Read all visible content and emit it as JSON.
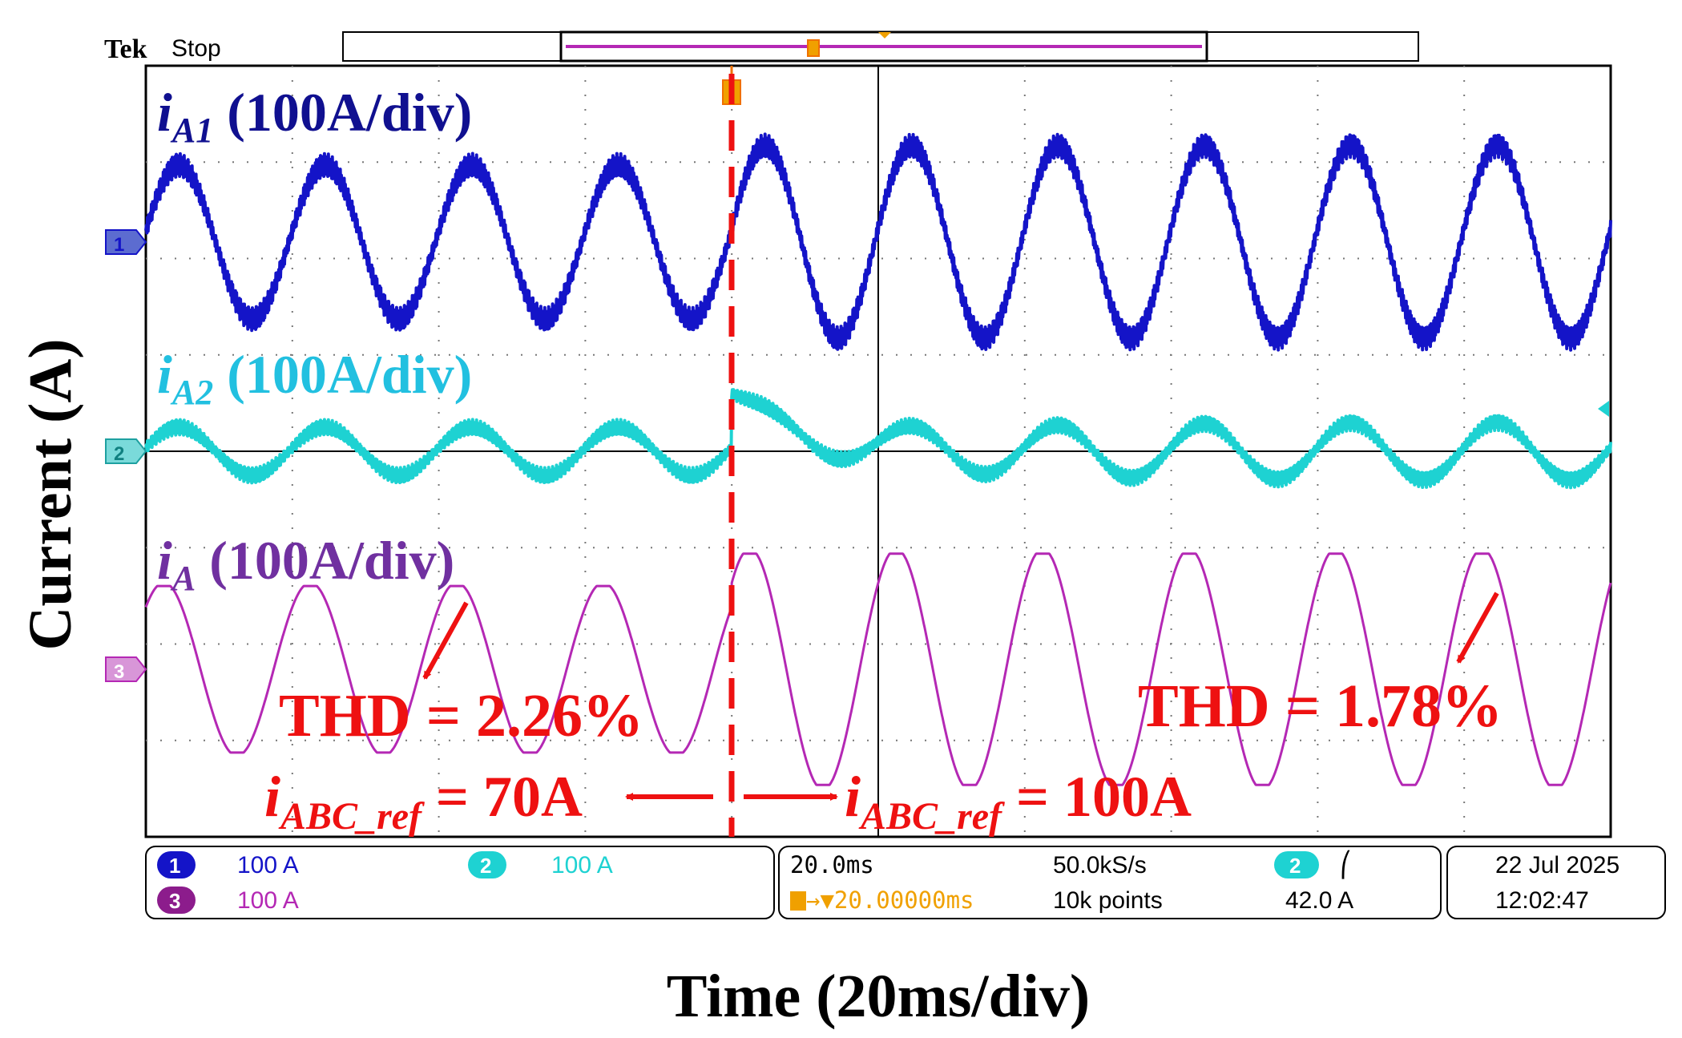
{
  "header": {
    "brand": "Tek",
    "state": "Stop"
  },
  "axes": {
    "ylabel": "Current (A)",
    "xlabel": "Time (20ms/div)"
  },
  "chart_data": {
    "type": "line",
    "title": "",
    "xlabel": "Time (20ms/div)",
    "ylabel": "Current (A)",
    "x_unit": "ms",
    "xlim": [
      0,
      200
    ],
    "divisions": {
      "horizontal": 10,
      "vertical": 8
    },
    "grid": true,
    "step_time_ms": 80,
    "fundamental_hz": 50,
    "series": [
      {
        "name": "iA1",
        "sub": "A1",
        "label_rest": " (100A/div)",
        "scale": "100 A/div",
        "channel": "1",
        "color": "#1414c8",
        "amp_before_A": 80,
        "amp_after_A": 100,
        "ripple_A": 12,
        "offset_div": 0
      },
      {
        "name": "iA2",
        "sub": "A2",
        "label_rest": " (100A/div)",
        "scale": "100 A/div",
        "channel": "2",
        "color": "#1ed2d2",
        "amp_before_A": 25,
        "amp_after_A": 30,
        "ripple_A": 8,
        "offset_div": 0,
        "step_offset_A": 55
      },
      {
        "name": "iA",
        "sub": "A",
        "label_rest": " (100A/div)",
        "scale": "100 A/div",
        "channel": "3",
        "color": "#b428b4",
        "amp_before_A": 90,
        "amp_after_A": 125,
        "ripple_A": 0,
        "offset_div": 0
      }
    ],
    "annotations": [
      {
        "text": "THD = 2.26%",
        "region": "before step"
      },
      {
        "text": "THD = 1.78%",
        "region": "after step"
      },
      {
        "sym": "i",
        "sub": "ABC_ref",
        "rest": " = 70A",
        "region": "before step"
      },
      {
        "sym": "i",
        "sub": "ABC_ref",
        "rest": " = 100A",
        "region": "after step"
      }
    ]
  },
  "footer": {
    "ch1": {
      "num": "1",
      "value": "100 A"
    },
    "ch2": {
      "num": "2",
      "value": "100 A"
    },
    "ch3": {
      "num": "3",
      "value": "100 A"
    },
    "timebase": "20.0ms",
    "sample_rate": "50.0kS/s",
    "trigger_pos": "→▼20.00000ms",
    "record_length": "10k points",
    "trigger_channel": "2",
    "trigger_slope": "⎛",
    "trigger_level": "42.0 A",
    "date": "22 Jul  2025",
    "time": "12:02:47"
  },
  "colors": {
    "dashed_step": "#ee1111",
    "annotation": "#ee1111",
    "label_ch1": "#101090",
    "label_ch2": "#22c0e0",
    "label_ch3": "#7030a0"
  }
}
